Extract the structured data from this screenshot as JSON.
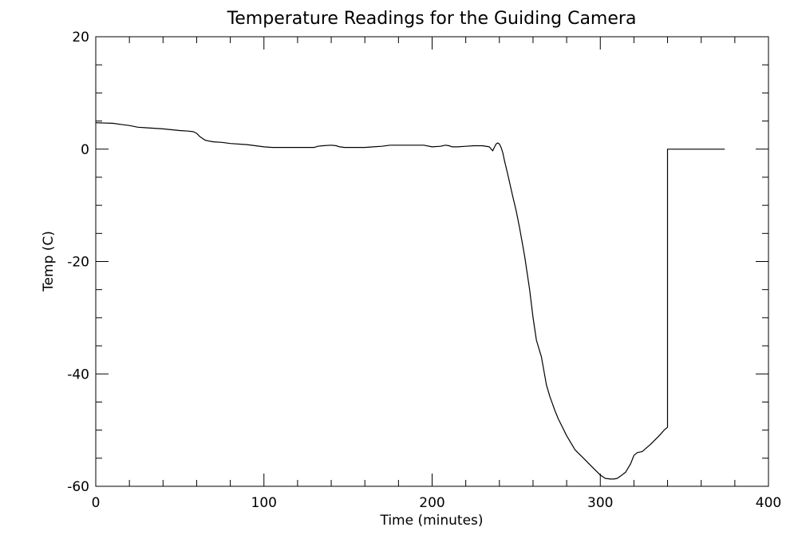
{
  "chart_data": {
    "type": "line",
    "title": "Temperature Readings for the Guiding Camera",
    "xlabel": "Time (minutes)",
    "ylabel": "Temp (C)",
    "xlim": [
      0,
      400
    ],
    "ylim": [
      -60,
      20
    ],
    "xticks": [
      "0",
      "100",
      "200",
      "300",
      "400"
    ],
    "yticks": [
      "20",
      "0",
      "-20",
      "-40",
      "-60"
    ],
    "grid": false,
    "legend": "none",
    "line_color": "#000000",
    "series": [
      {
        "x": [
          0,
          10,
          15,
          20,
          25,
          30,
          40,
          50,
          55,
          58,
          60,
          62,
          65,
          68,
          70,
          75,
          80,
          90,
          95,
          100,
          105,
          110,
          120,
          125,
          130,
          132,
          135,
          140,
          143,
          145,
          148,
          150,
          155,
          160,
          165,
          170,
          175,
          180,
          185,
          190,
          195,
          200,
          205,
          208,
          210,
          212,
          215,
          220,
          225,
          230,
          234,
          236,
          237,
          238,
          239,
          240,
          241,
          242,
          243,
          245,
          248,
          250,
          252,
          255,
          258,
          260,
          262,
          264,
          265,
          268,
          270,
          273,
          275,
          280,
          285,
          290,
          295,
          300,
          303,
          306,
          308,
          310,
          312,
          315,
          318,
          320,
          322,
          325,
          330,
          335,
          338,
          340,
          340,
          350,
          360,
          374
        ],
        "y": [
          4.7,
          4.6,
          4.4,
          4.2,
          3.9,
          3.8,
          3.6,
          3.3,
          3.2,
          3.1,
          2.8,
          2.2,
          1.6,
          1.4,
          1.3,
          1.2,
          1.0,
          0.8,
          0.6,
          0.4,
          0.3,
          0.3,
          0.3,
          0.3,
          0.3,
          0.5,
          0.6,
          0.7,
          0.6,
          0.4,
          0.3,
          0.3,
          0.3,
          0.3,
          0.4,
          0.5,
          0.7,
          0.7,
          0.7,
          0.7,
          0.7,
          0.4,
          0.5,
          0.7,
          0.6,
          0.4,
          0.4,
          0.5,
          0.6,
          0.6,
          0.4,
          -0.3,
          0.3,
          0.9,
          1.1,
          0.9,
          0.3,
          -0.6,
          -2,
          -4.5,
          -8.5,
          -11,
          -14,
          -19,
          -25,
          -30,
          -34,
          -36,
          -37,
          -42,
          -44,
          -46.5,
          -48,
          -51,
          -53.5,
          -55,
          -56.5,
          -58,
          -58.6,
          -58.7,
          -58.7,
          -58.6,
          -58.2,
          -57.5,
          -56,
          -54.5,
          -54,
          -53.8,
          -52.5,
          -51,
          -50,
          -49.5,
          0,
          0,
          0,
          0
        ]
      }
    ]
  }
}
